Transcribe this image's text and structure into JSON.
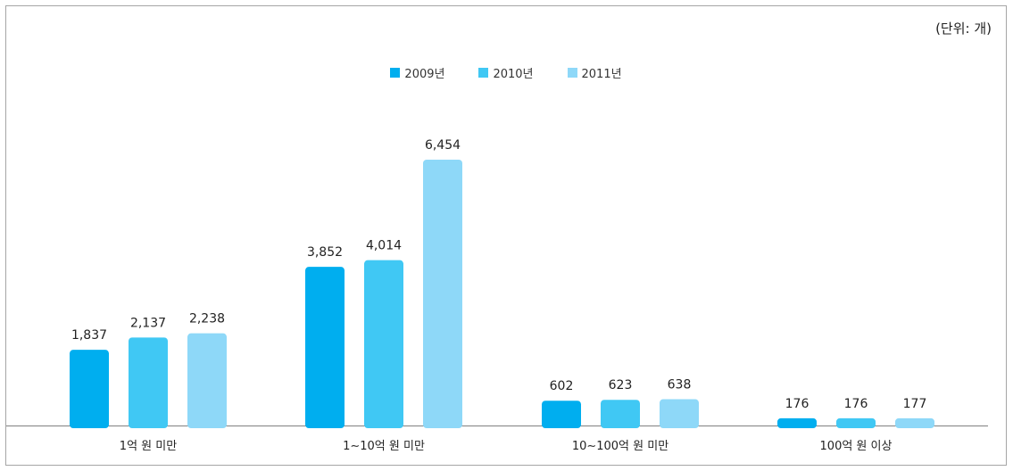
{
  "unit_label": "(단위: 개)",
  "colors": {
    "series_2009": "#00AEEF",
    "series_2010": "#40C8F4",
    "series_2011": "#8ED8F8",
    "axis": "#808080"
  },
  "chart_data": {
    "type": "bar",
    "title": "",
    "xlabel": "",
    "ylabel": "",
    "unit": "(단위: 개)",
    "legend_position": "top-center",
    "grid": false,
    "ylim": [
      0,
      7200
    ],
    "categories": [
      "1억 원 미만",
      "1∼10억 원 미만",
      "10∼100억 원 미만",
      "100억 원 이상"
    ],
    "series": [
      {
        "name": "2009년",
        "values": [
          1837,
          3852,
          602,
          176
        ],
        "labels": [
          "1,837",
          "3,852",
          "602",
          "176"
        ],
        "color": "#00AEEF"
      },
      {
        "name": "2010년",
        "values": [
          2137,
          4014,
          623,
          176
        ],
        "labels": [
          "2,137",
          "4,014",
          "623",
          "176"
        ],
        "color": "#40C8F4"
      },
      {
        "name": "2011년",
        "values": [
          2238,
          6454,
          638,
          177
        ],
        "labels": [
          "2,238",
          "6,454",
          "638",
          "177"
        ],
        "color": "#8ED8F8"
      }
    ]
  }
}
